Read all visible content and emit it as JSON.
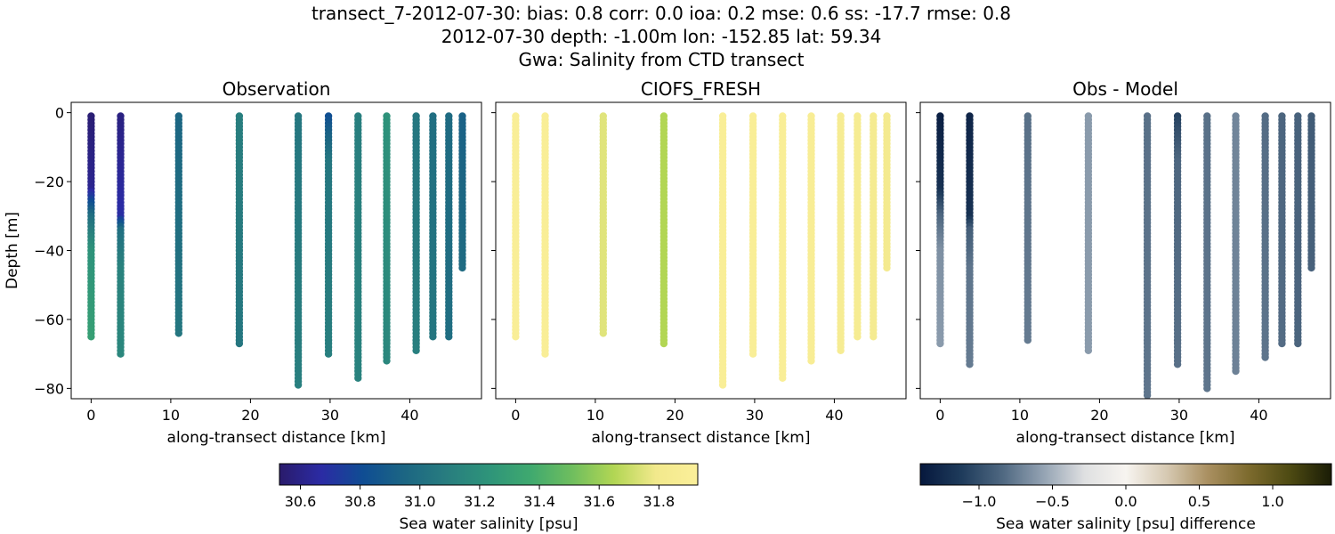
{
  "figure": {
    "title_lines": [
      "transect_7-2012-07-30: bias: 0.8  corr: 0.0  ioa: 0.2  mse: 0.6  ss: -17.7  rmse: 0.8",
      "2012-07-30 depth: -1.00m lon: -152.85 lat: 59.34",
      "Gwa: Salinity from CTD transect"
    ]
  },
  "chart_data": [
    {
      "type": "scatter",
      "title": "Observation",
      "xlabel": "along-transect distance [km]",
      "ylabel": "Depth [m]",
      "xlim": [
        -2.5,
        49
      ],
      "ylim": [
        -83,
        3
      ],
      "xticks": [
        0,
        10,
        20,
        30,
        40
      ],
      "yticks": [
        0,
        -20,
        -40,
        -60,
        -80
      ],
      "colormap": "salinity",
      "casts": [
        {
          "x": 0.0,
          "max_depth": 65,
          "profile": [
            [
              0,
              30.55
            ],
            [
              22,
              30.62
            ],
            [
              30,
              31.0
            ],
            [
              40,
              31.22
            ],
            [
              65,
              31.3
            ]
          ]
        },
        {
          "x": 3.7,
          "max_depth": 70,
          "profile": [
            [
              0,
              30.58
            ],
            [
              30,
              30.68
            ],
            [
              34,
              31.0
            ],
            [
              45,
              31.12
            ],
            [
              70,
              31.15
            ]
          ]
        },
        {
          "x": 11.0,
          "max_depth": 64,
          "profile": [
            [
              0,
              30.95
            ],
            [
              64,
              31.05
            ]
          ]
        },
        {
          "x": 18.6,
          "max_depth": 67,
          "profile": [
            [
              0,
              31.1
            ],
            [
              67,
              31.05
            ]
          ]
        },
        {
          "x": 26.0,
          "max_depth": 79,
          "profile": [
            [
              0,
              31.05
            ],
            [
              79,
              31.1
            ]
          ]
        },
        {
          "x": 29.8,
          "max_depth": 70,
          "profile": [
            [
              0,
              30.8
            ],
            [
              6,
              30.92
            ],
            [
              14,
              31.05
            ],
            [
              70,
              31.1
            ]
          ]
        },
        {
          "x": 33.5,
          "max_depth": 77,
          "profile": [
            [
              0,
              31.1
            ],
            [
              77,
              31.12
            ]
          ]
        },
        {
          "x": 37.1,
          "max_depth": 72,
          "profile": [
            [
              0,
              31.22
            ],
            [
              72,
              31.15
            ]
          ]
        },
        {
          "x": 40.8,
          "max_depth": 69,
          "profile": [
            [
              0,
              31.05
            ],
            [
              69,
              31.1
            ]
          ]
        },
        {
          "x": 42.9,
          "max_depth": 65,
          "profile": [
            [
              0,
              31.0
            ],
            [
              65,
              31.05
            ]
          ]
        },
        {
          "x": 44.9,
          "max_depth": 65,
          "profile": [
            [
              0,
              30.98
            ],
            [
              65,
              31.0
            ]
          ]
        },
        {
          "x": 46.6,
          "max_depth": 45,
          "profile": [
            [
              0,
              30.92
            ],
            [
              45,
              30.98
            ]
          ]
        }
      ]
    },
    {
      "type": "scatter",
      "title": "CIOFS_FRESH",
      "xlabel": "along-transect distance [km]",
      "ylabel": "",
      "xlim": [
        -2.5,
        49
      ],
      "ylim": [
        -83,
        3
      ],
      "xticks": [
        0,
        10,
        20,
        30,
        40
      ],
      "yticks": [
        0,
        -20,
        -40,
        -60,
        -80
      ],
      "colormap": "salinity",
      "casts": [
        {
          "x": 0.0,
          "max_depth": 65,
          "profile": [
            [
              0,
              31.9
            ],
            [
              65,
              31.9
            ]
          ]
        },
        {
          "x": 3.7,
          "max_depth": 70,
          "profile": [
            [
              0,
              31.9
            ],
            [
              70,
              31.9
            ]
          ]
        },
        {
          "x": 11.0,
          "max_depth": 64,
          "profile": [
            [
              0,
              31.75
            ],
            [
              64,
              31.75
            ]
          ]
        },
        {
          "x": 18.6,
          "max_depth": 67,
          "profile": [
            [
              0,
              31.65
            ],
            [
              67,
              31.65
            ]
          ]
        },
        {
          "x": 26.0,
          "max_depth": 79,
          "profile": [
            [
              0,
              31.9
            ],
            [
              79,
              31.9
            ]
          ]
        },
        {
          "x": 29.8,
          "max_depth": 70,
          "profile": [
            [
              0,
              31.9
            ],
            [
              70,
              31.9
            ]
          ]
        },
        {
          "x": 33.5,
          "max_depth": 77,
          "profile": [
            [
              0,
              31.9
            ],
            [
              77,
              31.9
            ]
          ]
        },
        {
          "x": 37.1,
          "max_depth": 72,
          "profile": [
            [
              0,
              31.88
            ],
            [
              72,
              31.88
            ]
          ]
        },
        {
          "x": 40.8,
          "max_depth": 69,
          "profile": [
            [
              0,
              31.86
            ],
            [
              69,
              31.86
            ]
          ]
        },
        {
          "x": 42.9,
          "max_depth": 65,
          "profile": [
            [
              0,
              31.85
            ],
            [
              65,
              31.85
            ]
          ]
        },
        {
          "x": 44.9,
          "max_depth": 65,
          "profile": [
            [
              0,
              31.84
            ],
            [
              65,
              31.84
            ]
          ]
        },
        {
          "x": 46.6,
          "max_depth": 45,
          "profile": [
            [
              0,
              31.82
            ],
            [
              45,
              31.82
            ]
          ]
        }
      ]
    },
    {
      "type": "scatter",
      "title": "Obs - Model",
      "xlabel": "along-transect distance [km]",
      "ylabel": "",
      "xlim": [
        -2.5,
        49
      ],
      "ylim": [
        -83,
        3
      ],
      "xticks": [
        0,
        10,
        20,
        30,
        40
      ],
      "yticks": [
        0,
        -20,
        -40,
        -60,
        -80
      ],
      "colormap": "diff",
      "casts": [
        {
          "x": 0.0,
          "max_depth": 67,
          "profile": [
            [
              0,
              -1.35
            ],
            [
              22,
              -1.2
            ],
            [
              30,
              -0.85
            ],
            [
              40,
              -0.65
            ],
            [
              67,
              -0.6
            ]
          ]
        },
        {
          "x": 3.7,
          "max_depth": 73,
          "profile": [
            [
              0,
              -1.3
            ],
            [
              30,
              -1.2
            ],
            [
              34,
              -0.9
            ],
            [
              45,
              -0.78
            ],
            [
              73,
              -0.75
            ]
          ]
        },
        {
          "x": 11.0,
          "max_depth": 66,
          "profile": [
            [
              0,
              -0.8
            ],
            [
              66,
              -0.75
            ]
          ]
        },
        {
          "x": 18.6,
          "max_depth": 69,
          "profile": [
            [
              0,
              -0.6
            ],
            [
              69,
              -0.6
            ]
          ]
        },
        {
          "x": 26.0,
          "max_depth": 82,
          "profile": [
            [
              0,
              -0.8
            ],
            [
              82,
              -0.78
            ]
          ]
        },
        {
          "x": 29.8,
          "max_depth": 73,
          "profile": [
            [
              0,
              -1.1
            ],
            [
              6,
              -0.98
            ],
            [
              14,
              -0.85
            ],
            [
              73,
              -0.8
            ]
          ]
        },
        {
          "x": 33.5,
          "max_depth": 80,
          "profile": [
            [
              0,
              -0.8
            ],
            [
              80,
              -0.78
            ]
          ]
        },
        {
          "x": 37.1,
          "max_depth": 75,
          "profile": [
            [
              0,
              -0.7
            ],
            [
              75,
              -0.72
            ]
          ]
        },
        {
          "x": 40.8,
          "max_depth": 71,
          "profile": [
            [
              0,
              -0.82
            ],
            [
              71,
              -0.78
            ]
          ]
        },
        {
          "x": 42.9,
          "max_depth": 67,
          "profile": [
            [
              0,
              -0.86
            ],
            [
              67,
              -0.82
            ]
          ]
        },
        {
          "x": 44.9,
          "max_depth": 67,
          "profile": [
            [
              0,
              -0.88
            ],
            [
              67,
              -0.86
            ]
          ]
        },
        {
          "x": 46.6,
          "max_depth": 45,
          "profile": [
            [
              0,
              -0.92
            ],
            [
              45,
              -0.88
            ]
          ]
        }
      ]
    }
  ],
  "colorbars": [
    {
      "label": "Sea water salinity [psu]",
      "range": [
        30.53,
        31.93
      ],
      "ticks": [
        30.6,
        30.8,
        31.0,
        31.2,
        31.4,
        31.6,
        31.8
      ],
      "tick_labels": [
        "30.6",
        "30.8",
        "31.0",
        "31.2",
        "31.4",
        "31.6",
        "31.8"
      ],
      "colormap": "salinity"
    },
    {
      "label": "Sea water salinity [psu] difference",
      "range": [
        -1.4,
        1.4
      ],
      "ticks": [
        -1.0,
        -0.5,
        0.0,
        0.5,
        1.0
      ],
      "tick_labels": [
        "−1.0",
        "−0.5",
        "0.0",
        "0.5",
        "1.0"
      ],
      "colormap": "diff"
    }
  ],
  "colormaps": {
    "salinity": [
      "#2a1b6b",
      "#2b2ba4",
      "#0f4d93",
      "#1c6683",
      "#287d7f",
      "#2e947a",
      "#3fa96f",
      "#6fbe5e",
      "#b2d654",
      "#f2e98c",
      "#fbef9a"
    ],
    "diff": [
      "#06183d",
      "#1e3b5b",
      "#4f6881",
      "#94a3b3",
      "#dfe0e1",
      "#f7f4f0",
      "#d6c9b2",
      "#a98f60",
      "#7c6a2d",
      "#4d4a12",
      "#1a1c06"
    ]
  }
}
